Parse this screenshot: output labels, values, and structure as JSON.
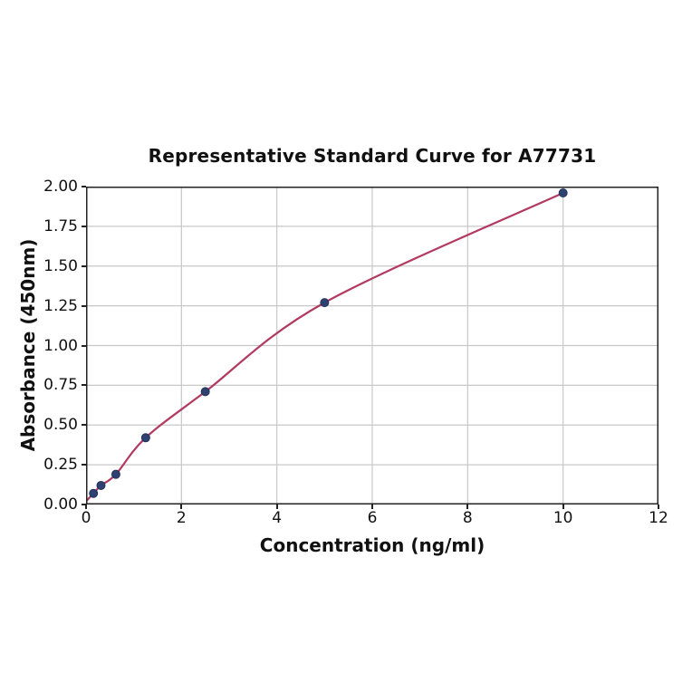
{
  "chart_data": {
    "type": "scatter",
    "title": "Representative Standard Curve for A77731",
    "xlabel": "Concentration (ng/ml)",
    "ylabel": "Absorbance (450nm)",
    "xlim": [
      0,
      12
    ],
    "ylim": [
      0,
      2
    ],
    "x_ticks": [
      0,
      2,
      4,
      6,
      8,
      10,
      12
    ],
    "y_ticks": [
      0,
      0.25,
      0.5,
      0.75,
      1,
      1.25,
      1.5,
      1.75,
      2
    ],
    "grid": true,
    "legend": false,
    "series": [
      {
        "name": "standard-points",
        "points": [
          {
            "x": 0.156,
            "y": 0.07
          },
          {
            "x": 0.313,
            "y": 0.12
          },
          {
            "x": 0.625,
            "y": 0.19
          },
          {
            "x": 1.25,
            "y": 0.42
          },
          {
            "x": 2.5,
            "y": 0.71
          },
          {
            "x": 5,
            "y": 1.27
          },
          {
            "x": 10,
            "y": 1.96
          }
        ]
      }
    ],
    "fit_curve": {
      "start": {
        "x": 0,
        "y": 0.02
      },
      "passes_through_points": true
    },
    "colors": {
      "curve": "#b23a60",
      "marker": "#2e4170",
      "marker_edge": "#22335c",
      "grid": "#c8c8c8",
      "spine": "#222222",
      "text": "#111111"
    }
  }
}
